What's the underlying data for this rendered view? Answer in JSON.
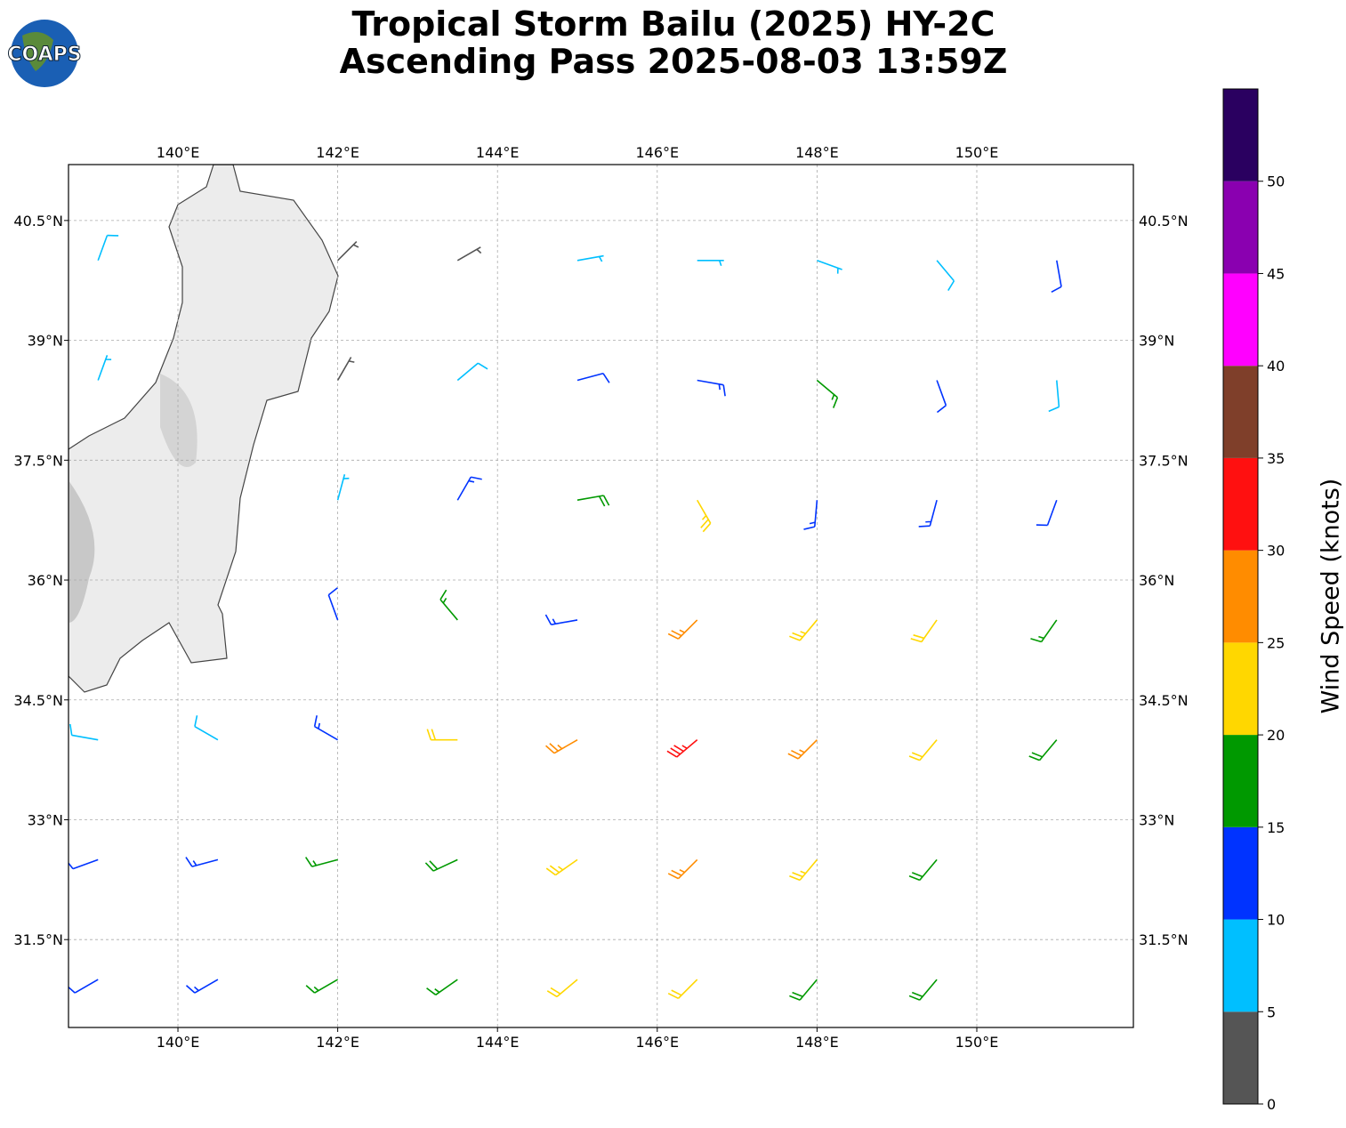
{
  "chart_data": {
    "type": "barbs",
    "logo": "COAPS",
    "title": "Tropical Storm Bailu (2025) HY-2C",
    "subtitle": "Ascending Pass 2025-08-03 13:59Z",
    "xlim": [
      138.63,
      151.96
    ],
    "ylim": [
      30.4,
      41.2
    ],
    "xticks": [
      {
        "value": 140,
        "label": "140°E"
      },
      {
        "value": 142,
        "label": "142°E"
      },
      {
        "value": 144,
        "label": "144°E"
      },
      {
        "value": 146,
        "label": "146°E"
      },
      {
        "value": 148,
        "label": "148°E"
      },
      {
        "value": 150,
        "label": "150°E"
      }
    ],
    "yticks": [
      {
        "value": 31.5,
        "label": "31.5°N"
      },
      {
        "value": 33,
        "label": "33°N"
      },
      {
        "value": 34.5,
        "label": "34.5°N"
      },
      {
        "value": 36,
        "label": "36°N"
      },
      {
        "value": 37.5,
        "label": "37.5°N"
      },
      {
        "value": 39,
        "label": "39°N"
      },
      {
        "value": 40.5,
        "label": "40.5°N"
      }
    ],
    "grid": true,
    "barbs": {
      "lon": [
        139,
        142,
        143.5,
        145,
        146.5,
        148,
        149.5,
        151,
        139,
        142,
        143.5,
        145,
        146.5,
        148,
        149.5,
        151,
        142,
        143.5,
        145,
        146.5,
        148,
        149.5,
        151,
        142,
        143.5,
        145,
        146.5,
        148,
        149.5,
        151,
        139,
        140.5,
        142,
        143.5,
        145,
        146.5,
        148,
        149.5,
        151,
        139,
        140.5,
        142,
        143.5,
        145,
        146.5,
        148,
        149.5,
        139,
        140.5,
        142,
        143.5,
        145,
        146.5,
        148,
        149.5
      ],
      "lat": [
        40,
        40,
        40,
        40,
        40,
        40,
        40,
        40,
        38.5,
        38.5,
        38.5,
        38.5,
        38.5,
        38.5,
        38.5,
        38.5,
        37,
        37,
        37,
        37,
        37,
        37,
        37,
        35.5,
        35.5,
        35.5,
        35.5,
        35.5,
        35.5,
        35.5,
        34,
        34,
        34,
        34,
        34,
        34,
        34,
        34,
        34,
        32.5,
        32.5,
        32.5,
        32.5,
        32.5,
        32.5,
        32.5,
        32.5,
        31,
        31,
        31,
        31,
        31,
        31,
        31,
        31
      ],
      "speed": [
        8,
        3,
        4,
        6,
        7,
        5,
        8,
        12,
        7,
        4,
        9,
        12,
        14,
        17,
        10,
        9,
        7,
        13,
        18,
        23,
        14,
        13,
        11,
        11,
        17,
        13,
        27,
        23,
        20,
        17,
        8,
        9,
        13,
        22,
        27,
        33,
        27,
        22,
        18,
        12,
        13,
        16,
        19,
        24,
        27,
        23,
        18,
        12,
        13,
        15,
        17,
        20,
        22,
        19,
        18
      ],
      "direction": [
        20,
        45,
        60,
        80,
        90,
        110,
        140,
        170,
        20,
        30,
        50,
        75,
        100,
        130,
        160,
        175,
        15,
        30,
        80,
        150,
        185,
        195,
        200,
        340,
        320,
        260,
        225,
        220,
        215,
        215,
        280,
        300,
        300,
        270,
        240,
        230,
        225,
        220,
        220,
        250,
        255,
        255,
        245,
        235,
        225,
        220,
        220,
        240,
        240,
        240,
        235,
        230,
        225,
        220,
        220
      ]
    },
    "colorbar": {
      "label": "Wind Speed (knots)",
      "bounds": [
        0,
        5,
        10,
        15,
        20,
        25,
        30,
        35,
        40,
        45,
        50,
        55
      ],
      "colors": [
        "#555555",
        "#00bfff",
        "#0033ff",
        "#009900",
        "#ffd700",
        "#ff8c00",
        "#ff1010",
        "#7f3f2a",
        "#ff00ff",
        "#8a00b0",
        "#2a0060"
      ],
      "ticks": [
        0,
        5,
        10,
        15,
        20,
        25,
        30,
        35,
        40,
        45,
        50
      ]
    }
  }
}
